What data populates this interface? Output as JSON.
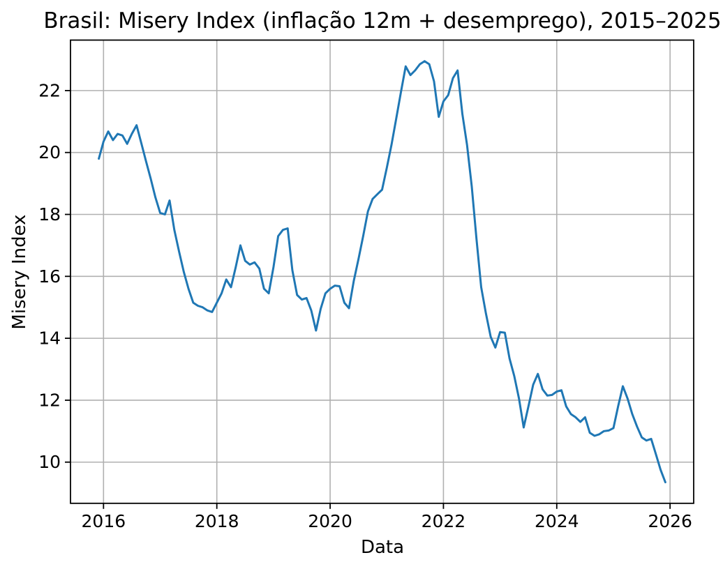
{
  "chart": {
    "title": "Brasil: Misery Index (inflação 12m + desemprego), 2015–2025",
    "xlabel": "Data",
    "ylabel": "Misery Index"
  },
  "colors": {
    "line": "#1f77b4",
    "grid": "#b0b0b0",
    "spine": "#000000",
    "background": "#ffffff"
  },
  "chart_data": {
    "type": "line",
    "title": "Brasil: Misery Index (inflação 12m + desemprego), 2015–2025",
    "xlabel": "Data",
    "ylabel": "Misery Index",
    "grid": true,
    "legend": false,
    "x_ticks": [
      2016,
      2018,
      2020,
      2022,
      2024,
      2026
    ],
    "y_ticks": [
      10,
      12,
      14,
      16,
      18,
      20,
      22
    ],
    "xlim": [
      2015.417,
      2026.417
    ],
    "ylim": [
      8.67,
      23.63
    ],
    "series": [
      {
        "name": "Misery Index (inflação 12m + desemprego)",
        "color": "#1f77b4",
        "x": [
          "2015-12",
          "2016-01",
          "2016-02",
          "2016-03",
          "2016-04",
          "2016-05",
          "2016-06",
          "2016-07",
          "2016-08",
          "2016-09",
          "2016-10",
          "2016-11",
          "2016-12",
          "2017-01",
          "2017-02",
          "2017-03",
          "2017-04",
          "2017-05",
          "2017-06",
          "2017-07",
          "2017-08",
          "2017-09",
          "2017-10",
          "2017-11",
          "2017-12",
          "2018-01",
          "2018-02",
          "2018-03",
          "2018-04",
          "2018-05",
          "2018-06",
          "2018-07",
          "2018-08",
          "2018-09",
          "2018-10",
          "2018-11",
          "2018-12",
          "2019-01",
          "2019-02",
          "2019-03",
          "2019-04",
          "2019-05",
          "2019-06",
          "2019-07",
          "2019-08",
          "2019-09",
          "2019-10",
          "2019-11",
          "2019-12",
          "2020-01",
          "2020-02",
          "2020-03",
          "2020-04",
          "2020-05",
          "2020-06",
          "2020-07",
          "2020-08",
          "2020-09",
          "2020-10",
          "2020-11",
          "2020-12",
          "2021-01",
          "2021-02",
          "2021-03",
          "2021-04",
          "2021-05",
          "2021-06",
          "2021-07",
          "2021-08",
          "2021-09",
          "2021-10",
          "2021-11",
          "2021-12",
          "2022-01",
          "2022-02",
          "2022-03",
          "2022-04",
          "2022-05",
          "2022-06",
          "2022-07",
          "2022-08",
          "2022-09",
          "2022-10",
          "2022-11",
          "2022-12",
          "2023-01",
          "2023-02",
          "2023-03",
          "2023-04",
          "2023-05",
          "2023-06",
          "2023-07",
          "2023-08",
          "2023-09",
          "2023-10",
          "2023-11",
          "2023-12",
          "2024-01",
          "2024-02",
          "2024-03",
          "2024-04",
          "2024-05",
          "2024-06",
          "2024-07",
          "2024-08",
          "2024-09",
          "2024-10",
          "2024-11",
          "2024-12",
          "2025-01",
          "2025-02",
          "2025-03",
          "2025-04",
          "2025-05",
          "2025-06",
          "2025-07",
          "2025-08",
          "2025-09",
          "2025-10",
          "2025-11",
          "2025-12"
        ],
        "y": [
          19.8,
          20.35,
          20.68,
          20.4,
          20.6,
          20.55,
          20.28,
          20.6,
          20.88,
          20.3,
          19.72,
          19.15,
          18.55,
          18.05,
          18.0,
          18.45,
          17.5,
          16.8,
          16.15,
          15.6,
          15.15,
          15.05,
          15.0,
          14.9,
          14.85,
          15.15,
          15.45,
          15.9,
          15.65,
          16.3,
          17.0,
          16.5,
          16.38,
          16.45,
          16.25,
          15.6,
          15.45,
          16.3,
          17.3,
          17.5,
          17.55,
          16.2,
          15.4,
          15.25,
          15.3,
          14.9,
          14.25,
          14.95,
          15.45,
          15.6,
          15.7,
          15.68,
          15.15,
          14.97,
          15.85,
          16.55,
          17.3,
          18.1,
          18.5,
          18.65,
          18.8,
          19.5,
          20.25,
          21.1,
          21.95,
          22.78,
          22.5,
          22.65,
          22.85,
          22.95,
          22.85,
          22.3,
          21.15,
          21.65,
          21.85,
          22.4,
          22.65,
          21.25,
          20.25,
          18.9,
          17.2,
          15.65,
          14.8,
          14.05,
          13.7,
          14.2,
          14.18,
          13.35,
          12.78,
          12.05,
          11.12,
          11.8,
          12.5,
          12.85,
          12.35,
          12.15,
          12.17,
          12.28,
          12.32,
          11.8,
          11.55,
          11.45,
          11.3,
          11.45,
          10.95,
          10.85,
          10.9,
          11.0,
          11.02,
          11.1,
          11.8,
          12.45,
          12.05,
          11.55,
          11.15,
          10.8,
          10.7,
          10.75,
          10.25,
          9.75,
          9.35
        ]
      }
    ]
  }
}
